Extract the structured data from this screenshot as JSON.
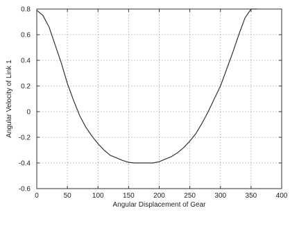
{
  "chart_data": {
    "type": "line",
    "title": "",
    "xlabel": "Angular Displacement of Gear",
    "ylabel": "Angular Velocity of Link 1",
    "xlim": [
      0,
      400
    ],
    "ylim": [
      -0.6,
      0.8
    ],
    "xticks": [
      0,
      50,
      100,
      150,
      200,
      250,
      300,
      350,
      400
    ],
    "yticks": [
      -0.6,
      -0.4,
      -0.2,
      0,
      0.2,
      0.4,
      0.6,
      0.8
    ],
    "xtick_labels": [
      "0",
      "50",
      "100",
      "150",
      "200",
      "250",
      "300",
      "350",
      "400"
    ],
    "ytick_labels": [
      "-0.6",
      "-0.4",
      "-0.2",
      "0",
      "0.2",
      "0.4",
      "0.6",
      "0.8"
    ],
    "grid": true,
    "grid_style": "dotted",
    "line_color": "#333333",
    "series": [
      {
        "x": [
          0,
          10,
          20,
          30,
          40,
          50,
          60,
          70,
          80,
          90,
          100,
          110,
          120,
          130,
          140,
          150,
          160,
          170,
          180,
          190,
          200,
          210,
          220,
          230,
          240,
          250,
          260,
          270,
          280,
          290,
          300,
          310,
          320,
          330,
          340,
          350,
          360
        ],
        "y": [
          0.79,
          0.75,
          0.66,
          0.52,
          0.38,
          0.22,
          0.09,
          -0.03,
          -0.12,
          -0.19,
          -0.25,
          -0.3,
          -0.34,
          -0.36,
          -0.38,
          -0.395,
          -0.4,
          -0.4,
          -0.4,
          -0.4,
          -0.39,
          -0.37,
          -0.35,
          -0.32,
          -0.28,
          -0.23,
          -0.17,
          -0.09,
          0.0,
          0.1,
          0.2,
          0.33,
          0.46,
          0.6,
          0.73,
          0.8,
          0.8
        ]
      }
    ]
  }
}
